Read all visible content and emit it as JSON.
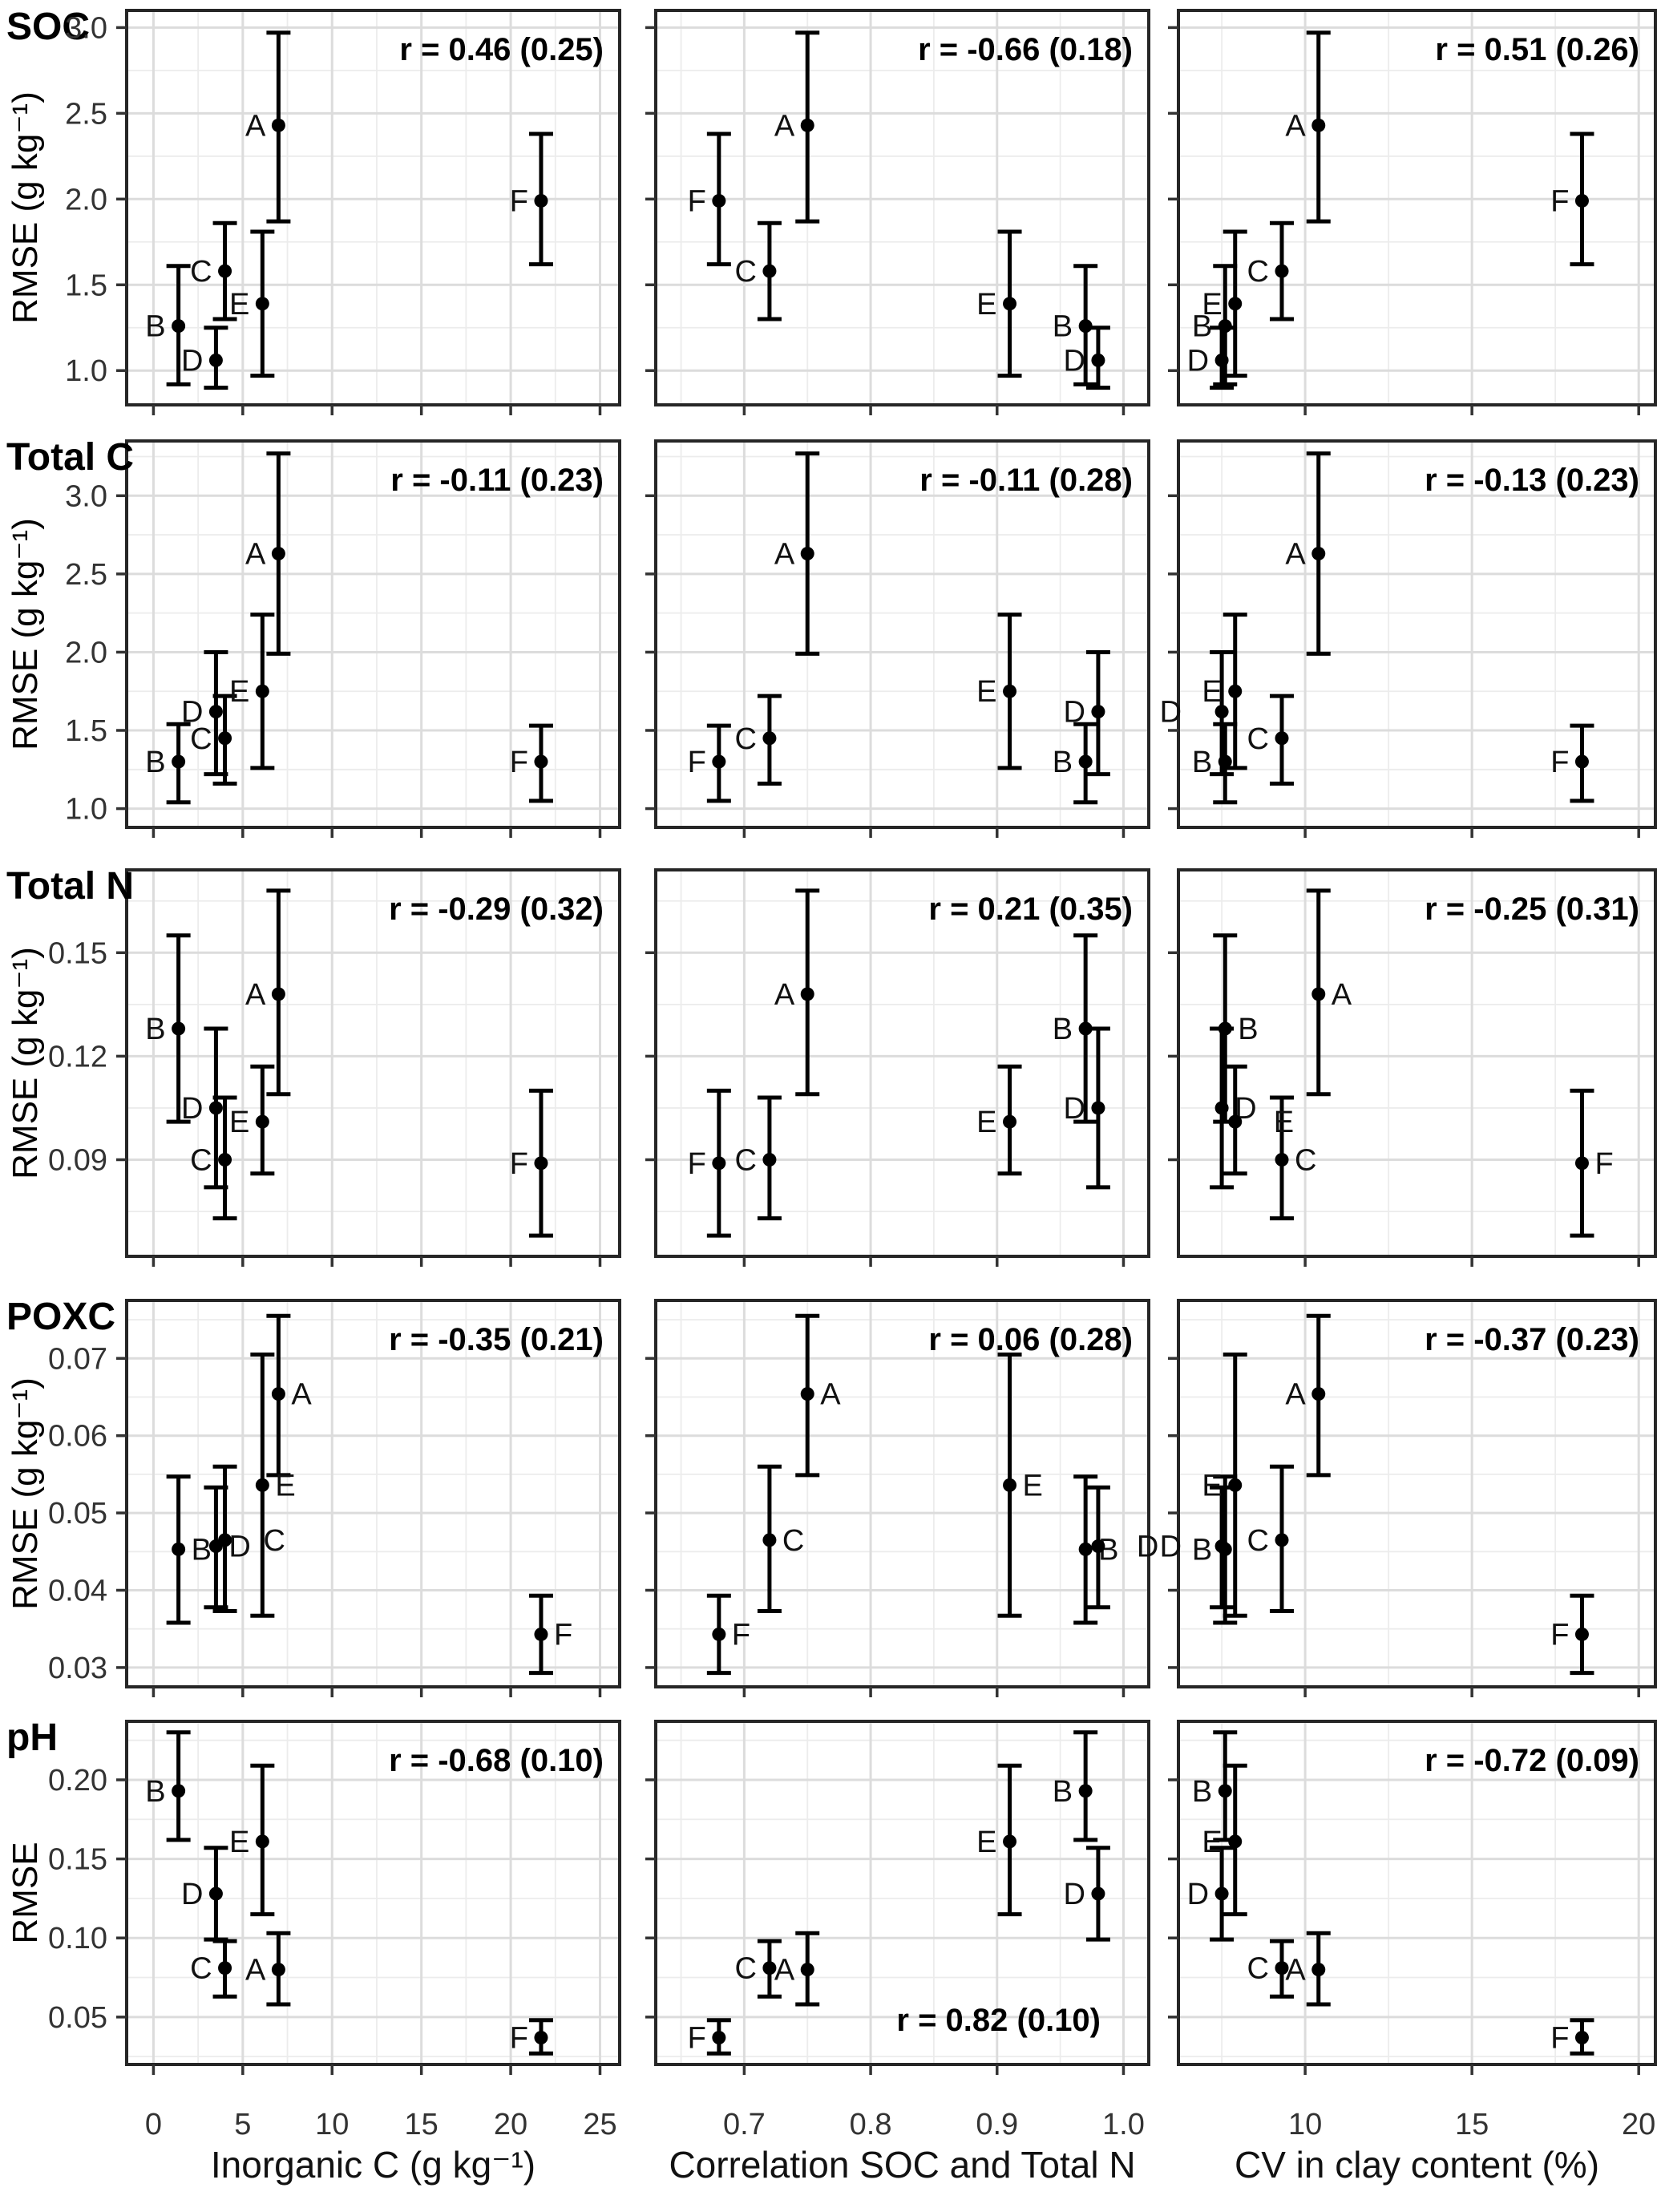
{
  "chart_data": {
    "type": "scatter",
    "title": "",
    "layout": {
      "grid": "5 rows x 3 columns",
      "legend": false,
      "grid_on": true,
      "point_color": "#000000",
      "panel_border_color": "#262626",
      "major_grid_color": "#dcdcdc",
      "minor_grid_color": "#ececec"
    },
    "sites": [
      "A",
      "B",
      "C",
      "D",
      "E",
      "F"
    ],
    "columns": [
      {
        "xlabel": "Inorganic C (g kg⁻¹)",
        "xlim": [
          -1.5,
          26.1
        ],
        "xticks": [
          0,
          5,
          10,
          15,
          20,
          25
        ],
        "xtick_labels": [
          "0",
          "5",
          "10",
          "15",
          "20",
          "25"
        ],
        "x_by_site": {
          "A": 7.0,
          "B": 1.4,
          "C": 4.0,
          "D": 3.5,
          "E": 6.1,
          "F": 21.7
        }
      },
      {
        "xlabel": "Correlation SOC and Total N",
        "xlim": [
          0.63,
          1.02
        ],
        "xticks": [
          0.7,
          0.8,
          0.9,
          1.0
        ],
        "xtick_labels": [
          "0.7",
          "0.8",
          "0.9",
          "1.0"
        ],
        "x_by_site": {
          "A": 0.75,
          "B": 0.97,
          "C": 0.72,
          "D": 0.98,
          "E": 0.91,
          "F": 0.68
        }
      },
      {
        "xlabel": "CV in clay content (%)",
        "xlim": [
          6.2,
          20.5
        ],
        "xticks": [
          10,
          15,
          20
        ],
        "xtick_labels": [
          "10",
          "15",
          "20"
        ],
        "x_by_site": {
          "A": 10.4,
          "B": 7.6,
          "C": 9.3,
          "D": 7.5,
          "E": 7.9,
          "F": 18.3
        }
      }
    ],
    "rows": [
      {
        "label": "SOC",
        "ylabel": "RMSE (g kg⁻¹)",
        "ylim": [
          0.8,
          3.1
        ],
        "yticks": [
          1.0,
          1.5,
          2.0,
          2.5,
          3.0
        ],
        "ytick_labels": [
          "1.0",
          "1.5",
          "2.0",
          "2.5",
          "3.0"
        ],
        "values": {
          "A": {
            "y": 2.43,
            "lo": 1.87,
            "hi": 2.97
          },
          "B": {
            "y": 1.26,
            "lo": 0.92,
            "hi": 1.61
          },
          "C": {
            "y": 1.58,
            "lo": 1.3,
            "hi": 1.86
          },
          "D": {
            "y": 1.06,
            "lo": 0.9,
            "hi": 1.25
          },
          "E": {
            "y": 1.39,
            "lo": 0.97,
            "hi": 1.81
          },
          "F": {
            "y": 1.99,
            "lo": 1.62,
            "hi": 2.38
          }
        },
        "panels": [
          {
            "r_label": "r = 0.46 (0.25)",
            "r_pos": "tr",
            "label_sides": {
              "A": "l",
              "B": "l",
              "C": "l",
              "D": "l",
              "E": "l",
              "F": "l"
            }
          },
          {
            "r_label": "r = -0.66 (0.18)",
            "r_pos": "tr",
            "label_sides": {
              "A": "l",
              "B": "l",
              "C": "l",
              "D": "l",
              "E": "l",
              "F": "l"
            }
          },
          {
            "r_label": "r = 0.51 (0.26)",
            "r_pos": "tr",
            "label_sides": {
              "A": "l",
              "B": "l",
              "C": "l",
              "D": "l",
              "E": "l",
              "F": "l"
            }
          }
        ]
      },
      {
        "label": "Total C",
        "ylabel": "RMSE (g kg⁻¹)",
        "ylim": [
          0.88,
          3.35
        ],
        "yticks": [
          1.0,
          1.5,
          2.0,
          2.5,
          3.0
        ],
        "ytick_labels": [
          "1.0",
          "1.5",
          "2.0",
          "2.5",
          "3.0"
        ],
        "values": {
          "A": {
            "y": 2.63,
            "lo": 1.99,
            "hi": 3.27
          },
          "B": {
            "y": 1.3,
            "lo": 1.04,
            "hi": 1.54
          },
          "C": {
            "y": 1.45,
            "lo": 1.16,
            "hi": 1.72
          },
          "D": {
            "y": 1.62,
            "lo": 1.22,
            "hi": 2.0
          },
          "E": {
            "y": 1.75,
            "lo": 1.26,
            "hi": 2.24
          },
          "F": {
            "y": 1.3,
            "lo": 1.05,
            "hi": 1.53
          }
        },
        "panels": [
          {
            "r_label": "r = -0.11 (0.23)",
            "r_pos": "tr",
            "label_sides": {
              "A": "l",
              "B": "l",
              "C": "l",
              "D": "l",
              "E": "l",
              "F": "l"
            }
          },
          {
            "r_label": "r = -0.11 (0.28)",
            "r_pos": "tr",
            "label_sides": {
              "A": "l",
              "B": "l",
              "C": "l",
              "D": "l",
              "E": "l",
              "F": "l"
            }
          },
          {
            "r_label": "r = -0.13 (0.23)",
            "r_pos": "tr",
            "label_sides": {
              "A": "l",
              "B": "l",
              "C": "l",
              "D": "ll",
              "E": "l",
              "F": "l"
            }
          }
        ]
      },
      {
        "label": "Total N",
        "ylabel": "RMSE (g kg⁻¹)",
        "ylim": [
          0.062,
          0.174
        ],
        "yticks": [
          0.09,
          0.12,
          0.15
        ],
        "ytick_labels": [
          "0.09",
          "0.12",
          "0.15"
        ],
        "values": {
          "A": {
            "y": 0.138,
            "lo": 0.109,
            "hi": 0.168
          },
          "B": {
            "y": 0.128,
            "lo": 0.101,
            "hi": 0.155
          },
          "C": {
            "y": 0.09,
            "lo": 0.073,
            "hi": 0.108
          },
          "D": {
            "y": 0.105,
            "lo": 0.082,
            "hi": 0.128
          },
          "E": {
            "y": 0.101,
            "lo": 0.086,
            "hi": 0.117
          },
          "F": {
            "y": 0.089,
            "lo": 0.068,
            "hi": 0.11
          }
        },
        "panels": [
          {
            "r_label": "r = -0.29 (0.32)",
            "r_pos": "tr",
            "label_sides": {
              "A": "l",
              "B": "l",
              "C": "l",
              "D": "l",
              "E": "l",
              "F": "l"
            }
          },
          {
            "r_label": "r = 0.21 (0.35)",
            "r_pos": "tr",
            "label_sides": {
              "A": "l",
              "B": "l",
              "C": "l",
              "D": "l",
              "E": "l",
              "F": "l"
            }
          },
          {
            "r_label": "r = -0.25 (0.31)",
            "r_pos": "tr",
            "label_sides": {
              "A": "r",
              "B": "r",
              "C": "r",
              "D": "r",
              "E": "rr",
              "F": "r"
            }
          }
        ]
      },
      {
        "label": "POXC",
        "ylabel": "RMSE (g kg⁻¹)",
        "ylim": [
          0.0275,
          0.0775
        ],
        "yticks": [
          0.03,
          0.04,
          0.05,
          0.06,
          0.07
        ],
        "ytick_labels": [
          "0.03",
          "0.04",
          "0.05",
          "0.06",
          "0.07"
        ],
        "values": {
          "A": {
            "y": 0.0654,
            "lo": 0.0549,
            "hi": 0.0755
          },
          "B": {
            "y": 0.0453,
            "lo": 0.0358,
            "hi": 0.0547
          },
          "C": {
            "y": 0.0465,
            "lo": 0.0373,
            "hi": 0.056
          },
          "D": {
            "y": 0.0457,
            "lo": 0.0378,
            "hi": 0.0533
          },
          "E": {
            "y": 0.0536,
            "lo": 0.0367,
            "hi": 0.0705
          },
          "F": {
            "y": 0.0343,
            "lo": 0.0293,
            "hi": 0.0393
          }
        },
        "panels": [
          {
            "r_label": "r = -0.35 (0.21)",
            "r_pos": "tr",
            "label_sides": {
              "A": "r",
              "B": "r",
              "C": "rr",
              "D": "r",
              "E": "r",
              "F": "r"
            }
          },
          {
            "r_label": "r = 0.06 (0.28)",
            "r_pos": "tr",
            "label_sides": {
              "A": "r",
              "B": "r",
              "C": "r",
              "D": "rr",
              "E": "r",
              "F": "r"
            }
          },
          {
            "r_label": "r = -0.37 (0.23)",
            "r_pos": "tr",
            "label_sides": {
              "A": "l",
              "B": "l",
              "C": "l",
              "D": "ll",
              "E": "l",
              "F": "l"
            }
          }
        ]
      },
      {
        "label": "pH",
        "ylabel": "RMSE",
        "ylim": [
          0.02,
          0.237
        ],
        "yticks": [
          0.05,
          0.1,
          0.15,
          0.2
        ],
        "ytick_labels": [
          "0.05",
          "0.10",
          "0.15",
          "0.20"
        ],
        "values": {
          "A": {
            "y": 0.08,
            "lo": 0.058,
            "hi": 0.103
          },
          "B": {
            "y": 0.193,
            "lo": 0.162,
            "hi": 0.23
          },
          "C": {
            "y": 0.081,
            "lo": 0.063,
            "hi": 0.098
          },
          "D": {
            "y": 0.128,
            "lo": 0.099,
            "hi": 0.157
          },
          "E": {
            "y": 0.161,
            "lo": 0.115,
            "hi": 0.209
          },
          "F": {
            "y": 0.037,
            "lo": 0.027,
            "hi": 0.048
          }
        },
        "panels": [
          {
            "r_label": "r = -0.68 (0.10)",
            "r_pos": "tr",
            "label_sides": {
              "A": "l",
              "B": "l",
              "C": "l",
              "D": "l",
              "E": "l",
              "F": "l"
            }
          },
          {
            "r_label": "r = 0.82 (0.10)",
            "r_pos": "br",
            "label_sides": {
              "A": "l",
              "B": "l",
              "C": "l",
              "D": "l",
              "E": "l",
              "F": "l"
            }
          },
          {
            "r_label": "r = -0.72 (0.09)",
            "r_pos": "tr",
            "label_sides": {
              "A": "l",
              "B": "l",
              "C": "l",
              "D": "l",
              "E": "l",
              "F": "l"
            }
          }
        ]
      }
    ]
  }
}
